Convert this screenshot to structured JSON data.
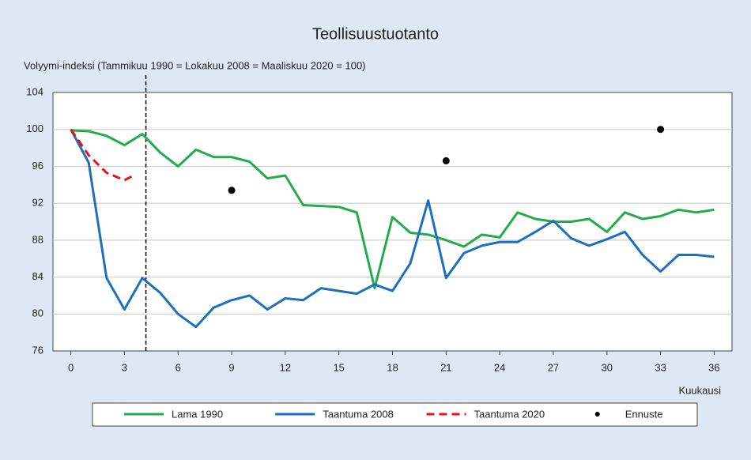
{
  "chart_data": {
    "type": "line",
    "title": "Teollisuustuotanto",
    "y_label": "Volyymi-indeksi (Tammikuu 1990 = Lokakuu 2008 = Maaliskuu 2020 = 100)",
    "x_label": "Kuukausi",
    "x": [
      0,
      1,
      2,
      3,
      4,
      5,
      6,
      7,
      8,
      9,
      10,
      11,
      12,
      13,
      14,
      15,
      16,
      17,
      18,
      19,
      20,
      21,
      22,
      23,
      24,
      25,
      26,
      27,
      28,
      29,
      30,
      31,
      32,
      33,
      34,
      35,
      36
    ],
    "series": [
      {
        "name": "Lama 1990",
        "color": "#22ac4c",
        "values": [
          99.9,
          99.8,
          99.3,
          98.3,
          99.5,
          97.5,
          96.0,
          97.8,
          97.0,
          97.0,
          96.5,
          94.7,
          95.0,
          91.8,
          91.7,
          91.6,
          91.0,
          82.8,
          90.5,
          88.8,
          88.6,
          88.0,
          87.3,
          88.6,
          88.3,
          91.0,
          90.3,
          90.0,
          90.0,
          90.3,
          88.9,
          91.0,
          90.3,
          90.6,
          91.3,
          91.0,
          91.3
        ]
      },
      {
        "name": "Taantuma 2008",
        "color": "#1c70bf",
        "values": [
          100,
          96.4,
          83.9,
          80.5,
          83.9,
          82.3,
          80.0,
          78.6,
          80.7,
          81.5,
          82.0,
          80.5,
          81.7,
          81.5,
          82.8,
          82.5,
          82.2,
          83.2,
          82.5,
          85.5,
          92.3,
          83.9,
          86.6,
          87.4,
          87.8,
          87.8,
          88.9,
          90.1,
          88.2,
          87.4,
          88.1,
          88.9,
          86.4,
          84.6,
          86.4,
          86.4,
          86.2
        ]
      },
      {
        "name": "Taantuma 2020",
        "color": "#e8141c",
        "dashed": true,
        "x": [
          0,
          1,
          2,
          3,
          3.5
        ],
        "values": [
          100,
          97.2,
          95.3,
          94.5,
          95.0
        ]
      },
      {
        "name": "Ennuste",
        "color": "#000000",
        "type": "scatter",
        "x": [
          9,
          21,
          33
        ],
        "values": [
          93.4,
          96.6,
          100
        ]
      }
    ],
    "vline_x": 4.2,
    "xlim": [
      -1,
      37
    ],
    "xticks": [
      0,
      3,
      6,
      9,
      12,
      15,
      18,
      21,
      24,
      27,
      30,
      33,
      36
    ],
    "ylim": [
      76,
      104
    ],
    "yticks": [
      76,
      80,
      84,
      88,
      92,
      96,
      100,
      104
    ],
    "grid": true
  }
}
